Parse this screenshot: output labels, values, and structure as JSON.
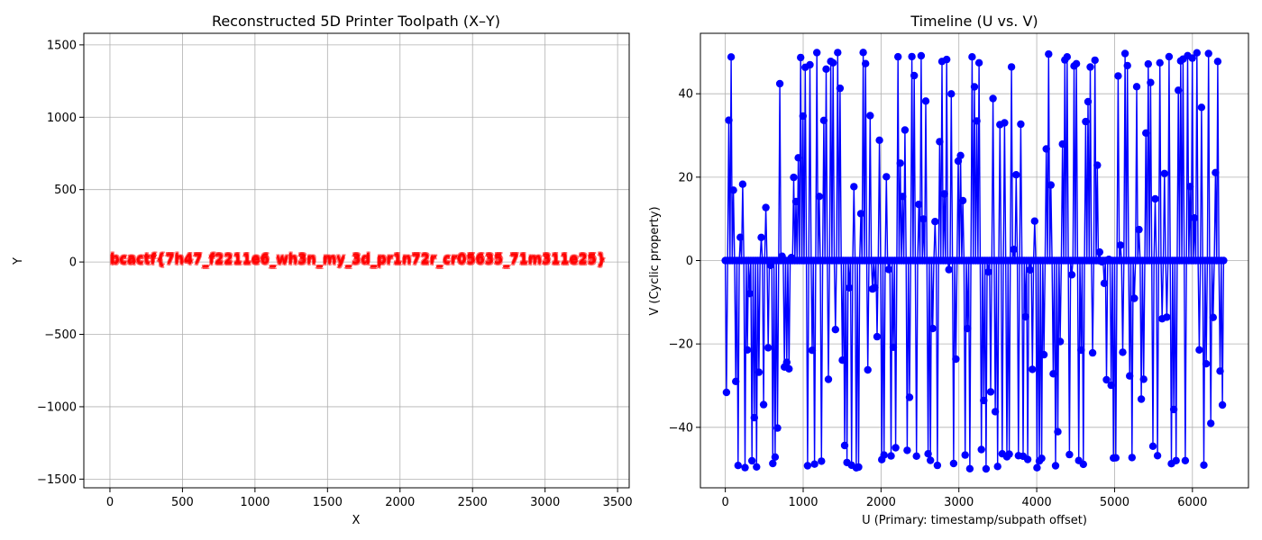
{
  "chart_data": [
    {
      "type": "scatter",
      "title": "Reconstructed 5D Printer Toolpath (X–Y)",
      "xlabel": "X",
      "ylabel": "Y",
      "xlim": [
        -180,
        3580
      ],
      "ylim": [
        -1560,
        1580
      ],
      "xticks": [
        0,
        500,
        1000,
        1500,
        2000,
        2500,
        3000,
        3500
      ],
      "yticks": [
        -1500,
        -1000,
        -500,
        0,
        500,
        1000,
        1500
      ],
      "grid": true,
      "overlay_text": "bcactf{7h47_f2211e6_wh3n_my_3d_pr1n72r_cr05635_71m311e25}",
      "overlay_x_range": [
        0,
        3420
      ],
      "overlay_y": 0,
      "color": "#ff0000"
    },
    {
      "type": "line",
      "title": "Timeline (U vs. V)",
      "xlabel": "U (Primary: timestamp/subpath offset)",
      "ylabel": "V (Cyclic property)",
      "xlim": [
        -320,
        6720
      ],
      "ylim": [
        -54.5,
        54.5
      ],
      "xticks": [
        0,
        1000,
        2000,
        3000,
        4000,
        5000,
        6000
      ],
      "yticks": [
        -40,
        -20,
        0,
        20,
        40
      ],
      "grid": true,
      "marker": "o",
      "color": "#0000ff",
      "series": [
        {
          "x_range": [
            0,
            6400
          ],
          "v_range": [
            -50,
            50
          ],
          "baseline": 0
        }
      ]
    }
  ]
}
